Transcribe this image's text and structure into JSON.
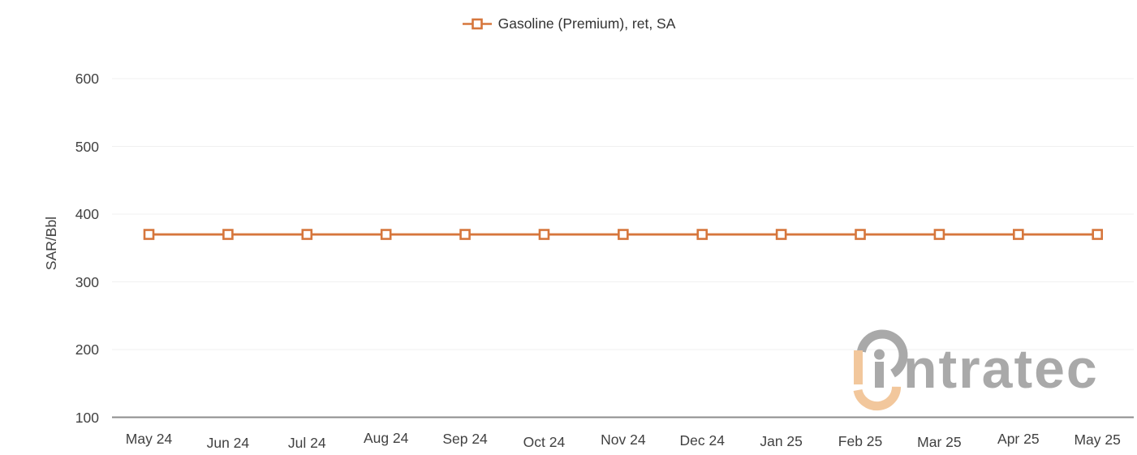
{
  "legend": {
    "label": "Gasoline (Premium), ret, SA"
  },
  "watermark": {
    "text": "intratec"
  },
  "colors": {
    "accent_orange": "#d6763c",
    "grid": "#f0f0f0",
    "axis_line": "#8c8c8c",
    "tick_text": "#414141",
    "legend_text": "#333333",
    "watermark_gray": "#a9a9a9",
    "watermark_tan": "#f2c79c",
    "marker_fill": "#ffffff"
  },
  "chart_data": {
    "type": "line",
    "categories": [
      "May 24",
      "Jun 24",
      "Jul 24",
      "Aug 24",
      "Sep 24",
      "Oct 24",
      "Nov 24",
      "Dec 24",
      "Jan 25",
      "Feb 25",
      "Mar 25",
      "Apr 25",
      "May 25"
    ],
    "series": [
      {
        "name": "Gasoline (Premium), ret, SA",
        "marker": "open-square",
        "values": [
          370,
          370,
          370,
          370,
          370,
          370,
          370,
          370,
          370,
          370,
          370,
          370,
          370
        ]
      }
    ],
    "xlabel": "",
    "ylabel": "SAR/Bbl",
    "ylim": [
      100,
      600
    ],
    "yticks": [
      100,
      200,
      300,
      400,
      500,
      600
    ],
    "grid": "horizontal",
    "legend_position": "top-center"
  }
}
